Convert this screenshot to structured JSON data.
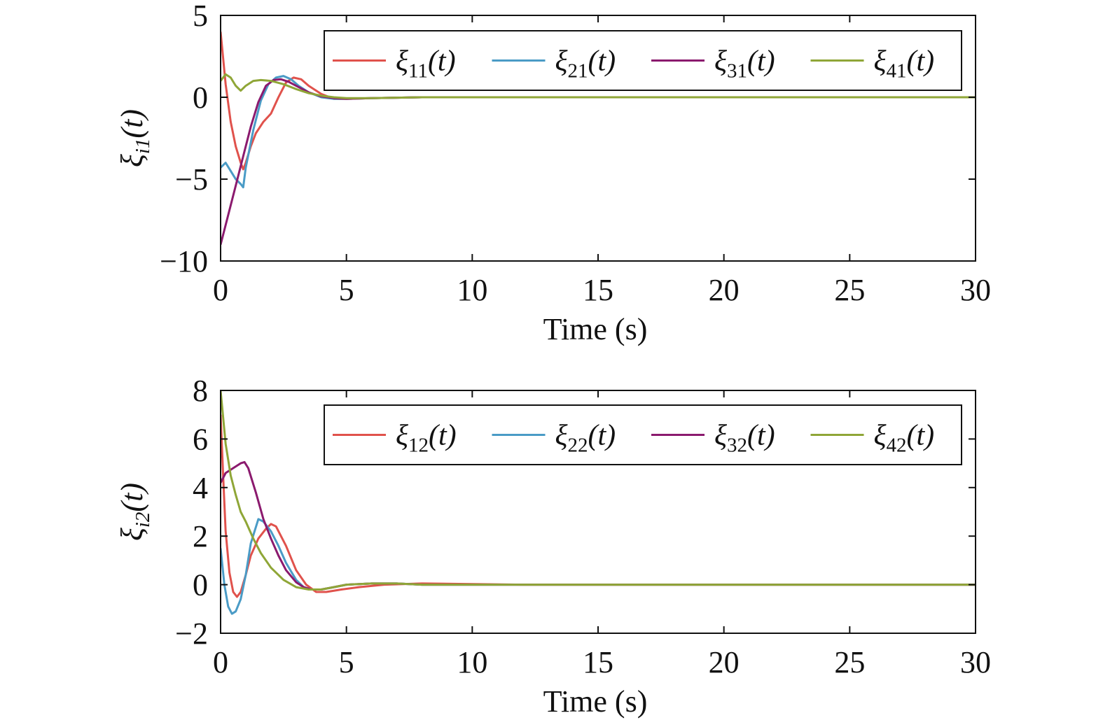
{
  "chart_data": [
    {
      "type": "line",
      "xlabel": "Time (s)",
      "ylabel": {
        "symbol": "ξ",
        "sub": "i1",
        "arg": "(t)"
      },
      "xlim": [
        0,
        30
      ],
      "ylim": [
        -10,
        5
      ],
      "xticks": [
        0,
        5,
        10,
        15,
        20,
        25,
        30
      ],
      "yticks": [
        -10,
        -5,
        0,
        5
      ],
      "ytick_labels": [
        "−10",
        "−5",
        "0",
        "5"
      ],
      "grid": false,
      "legend_position": "top-right",
      "series": [
        {
          "name": "ξ11(t)",
          "label": {
            "symbol": "ξ",
            "sub": "11",
            "arg": "(t)"
          },
          "color": "#e0524c",
          "x": [
            0,
            0.2,
            0.4,
            0.6,
            0.8,
            0.9,
            1.0,
            1.2,
            1.4,
            1.7,
            2.0,
            2.3,
            2.6,
            2.9,
            3.2,
            3.5,
            4.0,
            4.5,
            5.0,
            6.0,
            8.0,
            12,
            20,
            30
          ],
          "y": [
            4.0,
            0.8,
            -1.5,
            -3.0,
            -4.0,
            -4.4,
            -4.0,
            -3.0,
            -2.2,
            -1.5,
            -1.0,
            0.0,
            0.9,
            1.2,
            1.1,
            0.7,
            0.2,
            -0.1,
            -0.1,
            -0.05,
            0,
            0,
            0,
            0
          ]
        },
        {
          "name": "ξ21(t)",
          "label": {
            "symbol": "ξ",
            "sub": "21",
            "arg": "(t)"
          },
          "color": "#4a9bc6",
          "x": [
            0,
            0.2,
            0.4,
            0.6,
            0.8,
            0.9,
            1.0,
            1.3,
            1.6,
            1.9,
            2.2,
            2.5,
            2.8,
            3.1,
            3.5,
            4.0,
            4.5,
            5.0,
            6.0,
            8.0,
            12,
            20,
            30
          ],
          "y": [
            -4.3,
            -4.0,
            -4.5,
            -5.0,
            -5.3,
            -5.5,
            -4.3,
            -2.0,
            -0.2,
            0.8,
            1.2,
            1.3,
            1.1,
            0.7,
            0.3,
            0.0,
            -0.1,
            -0.1,
            -0.05,
            0,
            0,
            0,
            0
          ]
        },
        {
          "name": "ξ31(t)",
          "label": {
            "symbol": "ξ",
            "sub": "31",
            "arg": "(t)"
          },
          "color": "#8b1a6e",
          "x": [
            0,
            0.3,
            0.6,
            0.9,
            1.2,
            1.5,
            1.8,
            2.1,
            2.4,
            2.7,
            3.0,
            3.5,
            4.0,
            4.5,
            5.0,
            6.0,
            8.0,
            12,
            20,
            30
          ],
          "y": [
            -9.0,
            -7.2,
            -5.4,
            -3.6,
            -1.8,
            -0.3,
            0.7,
            1.05,
            1.1,
            0.95,
            0.7,
            0.3,
            0.05,
            -0.05,
            -0.1,
            -0.05,
            0,
            0,
            0,
            0
          ]
        },
        {
          "name": "ξ41(t)",
          "label": {
            "symbol": "ξ",
            "sub": "41",
            "arg": "(t)"
          },
          "color": "#8fa637",
          "x": [
            0,
            0.2,
            0.4,
            0.6,
            0.8,
            1.0,
            1.3,
            1.6,
            2.0,
            2.5,
            3.0,
            3.5,
            4.0,
            4.5,
            5.0,
            6.0,
            8.0,
            12,
            20,
            30
          ],
          "y": [
            1.0,
            1.4,
            1.2,
            0.7,
            0.4,
            0.7,
            1.0,
            1.05,
            1.0,
            0.8,
            0.5,
            0.25,
            0.1,
            0.0,
            -0.05,
            -0.05,
            0,
            0,
            0,
            0
          ]
        }
      ]
    },
    {
      "type": "line",
      "xlabel": "Time (s)",
      "ylabel": {
        "symbol": "ξ",
        "sub": "i2",
        "arg": "(t)"
      },
      "xlim": [
        0,
        30
      ],
      "ylim": [
        -2,
        8
      ],
      "xticks": [
        0,
        5,
        10,
        15,
        20,
        25,
        30
      ],
      "yticks": [
        -2,
        0,
        2,
        4,
        6,
        8
      ],
      "ytick_labels": [
        "−2",
        "0",
        "2",
        "4",
        "6",
        "8"
      ],
      "grid": false,
      "legend_position": "top-right",
      "series": [
        {
          "name": "ξ12(t)",
          "label": {
            "symbol": "ξ",
            "sub": "12",
            "arg": "(t)"
          },
          "color": "#e0524c",
          "x": [
            0,
            0.1,
            0.2,
            0.35,
            0.5,
            0.65,
            0.8,
            1.0,
            1.2,
            1.5,
            1.8,
            2.0,
            2.2,
            2.6,
            3.0,
            3.4,
            3.8,
            4.2,
            4.8,
            5.5,
            6.5,
            8.0,
            12,
            20,
            30
          ],
          "y": [
            7.0,
            4.5,
            2.2,
            0.5,
            -0.3,
            -0.5,
            -0.3,
            0.4,
            1.2,
            1.9,
            2.3,
            2.5,
            2.4,
            1.6,
            0.6,
            0.0,
            -0.3,
            -0.3,
            -0.2,
            -0.1,
            0.0,
            0.05,
            0,
            0,
            0
          ]
        },
        {
          "name": "ξ22(t)",
          "label": {
            "symbol": "ξ",
            "sub": "22",
            "arg": "(t)"
          },
          "color": "#4a9bc6",
          "x": [
            0,
            0.15,
            0.3,
            0.45,
            0.6,
            0.8,
            1.0,
            1.2,
            1.5,
            1.7,
            2.0,
            2.3,
            2.6,
            3.0,
            3.3,
            3.6,
            4.0,
            4.5,
            5.0,
            6.0,
            7.0,
            8.0,
            12,
            20,
            30
          ],
          "y": [
            1.5,
            0.0,
            -0.9,
            -1.2,
            -1.1,
            -0.6,
            0.4,
            1.7,
            2.7,
            2.6,
            2.2,
            1.6,
            0.9,
            0.2,
            -0.1,
            -0.2,
            -0.2,
            -0.1,
            0.0,
            0.05,
            0.05,
            0,
            0,
            0,
            0
          ]
        },
        {
          "name": "ξ32(t)",
          "label": {
            "symbol": "ξ",
            "sub": "32",
            "arg": "(t)"
          },
          "color": "#8b1a6e",
          "x": [
            0,
            0.2,
            0.5,
            0.8,
            0.95,
            1.1,
            1.4,
            1.7,
            2.0,
            2.3,
            2.6,
            3.0,
            3.3,
            3.6,
            4.0,
            4.5,
            5.0,
            6.0,
            7.0,
            8.0,
            12,
            20,
            30
          ],
          "y": [
            4.2,
            4.6,
            4.8,
            5.0,
            5.05,
            4.8,
            3.8,
            2.7,
            1.9,
            1.2,
            0.6,
            0.1,
            -0.1,
            -0.2,
            -0.2,
            -0.1,
            0.0,
            0.05,
            0.05,
            0,
            0,
            0,
            0
          ]
        },
        {
          "name": "ξ42(t)",
          "label": {
            "symbol": "ξ",
            "sub": "42",
            "arg": "(t)"
          },
          "color": "#8fa637",
          "x": [
            0,
            0.2,
            0.4,
            0.6,
            0.8,
            1.0,
            1.3,
            1.6,
            2.0,
            2.5,
            3.0,
            3.5,
            4.0,
            4.5,
            5.0,
            6.0,
            7.0,
            8.0,
            12,
            20,
            30
          ],
          "y": [
            8.0,
            5.8,
            4.5,
            3.7,
            3.0,
            2.6,
            1.9,
            1.3,
            0.7,
            0.2,
            -0.1,
            -0.2,
            -0.2,
            -0.1,
            0.0,
            0.05,
            0.05,
            0,
            0,
            0,
            0
          ]
        }
      ]
    }
  ]
}
